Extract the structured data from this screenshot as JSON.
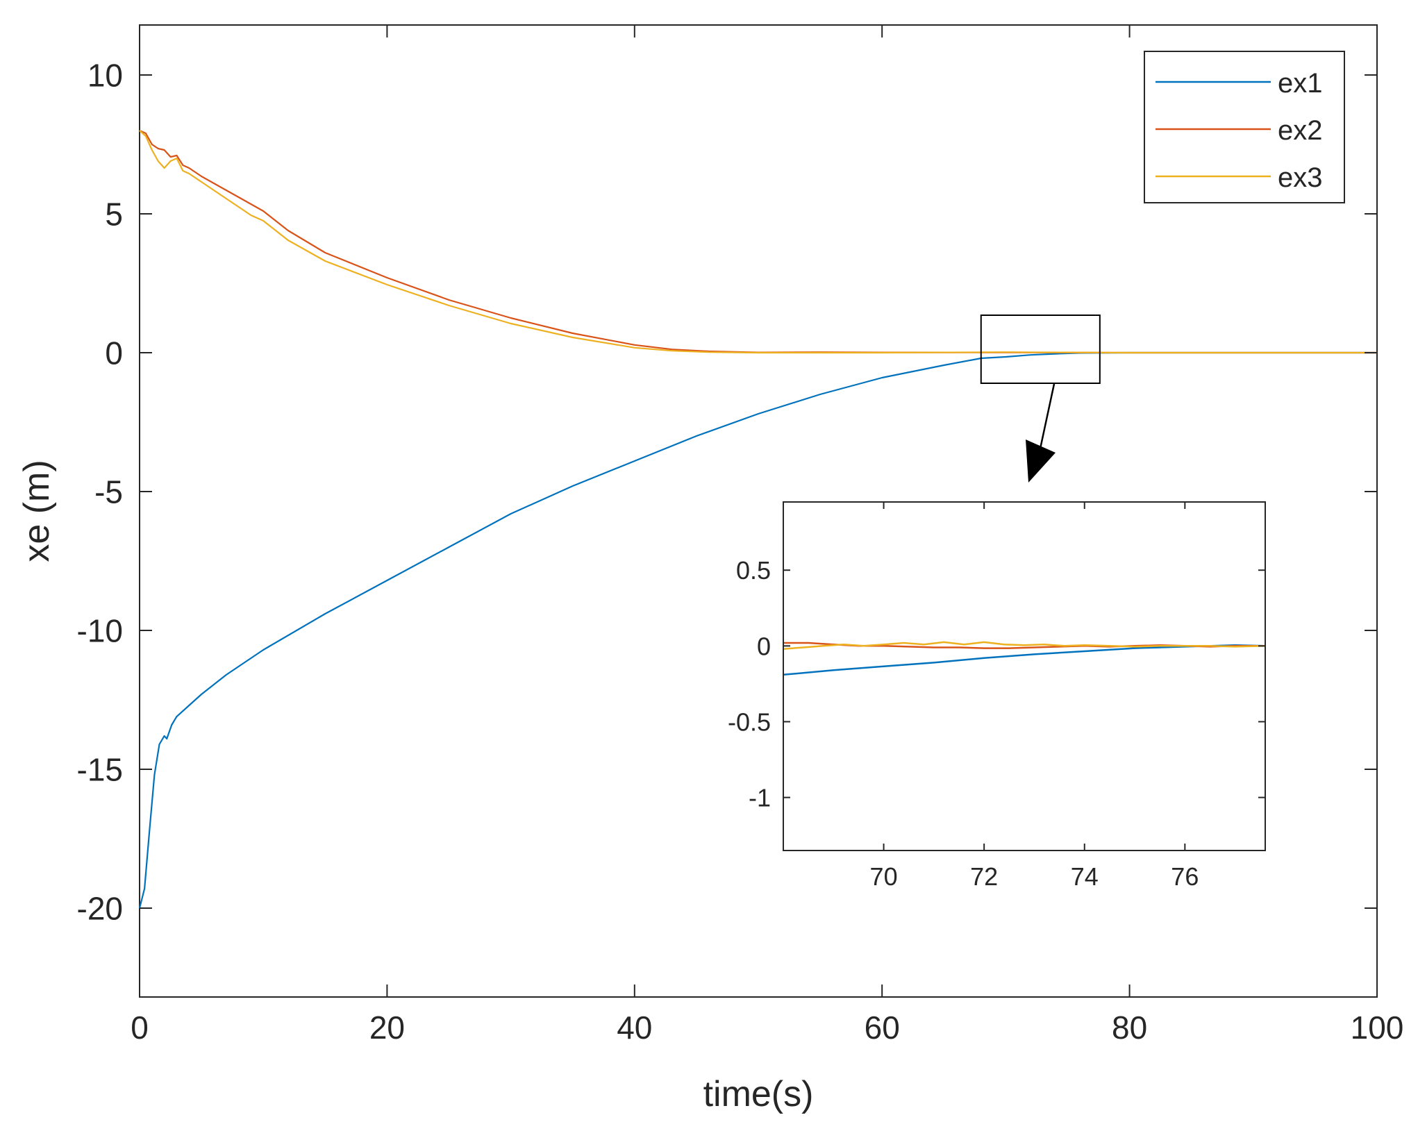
{
  "chart_data": [
    {
      "type": "line",
      "role": "main",
      "xlabel": "time(s)",
      "ylabel": "xe (m)",
      "xlim": [
        0,
        100
      ],
      "ylim": [
        -23.2,
        11.8
      ],
      "xticks": [
        0,
        20,
        40,
        60,
        80,
        100
      ],
      "yticks": [
        -20,
        -15,
        -10,
        -5,
        0,
        5,
        10
      ],
      "grid": false,
      "legend": {
        "placement": "top-right",
        "entries": [
          "ex1",
          "ex2",
          "ex3"
        ]
      },
      "series": [
        {
          "name": "ex1",
          "color": "#0072BD",
          "x": [
            0,
            0.4,
            0.8,
            1.2,
            1.6,
            2.0,
            2.2,
            2.6,
            3,
            4,
            5,
            7,
            10,
            15,
            20,
            25,
            30,
            35,
            40,
            45,
            50,
            55,
            60,
            65,
            68,
            70,
            72,
            74,
            76,
            80,
            90,
            100
          ],
          "y": [
            -20,
            -19.3,
            -17.2,
            -15.2,
            -14.1,
            -13.8,
            -13.9,
            -13.4,
            -13.1,
            -12.7,
            -12.3,
            -11.6,
            -10.7,
            -9.4,
            -8.2,
            -7.0,
            -5.8,
            -4.8,
            -3.9,
            -3.0,
            -2.2,
            -1.5,
            -0.9,
            -0.45,
            -0.2,
            -0.15,
            -0.08,
            -0.04,
            -0.01,
            0,
            0,
            0
          ]
        },
        {
          "name": "ex2",
          "color": "#D95319",
          "x": [
            0,
            0.5,
            1,
            1.5,
            2,
            2.5,
            3,
            3.5,
            4,
            5,
            6,
            7,
            8,
            9,
            10,
            12,
            15,
            20,
            25,
            30,
            35,
            40,
            43,
            46,
            50,
            55,
            60,
            70,
            80,
            90,
            100
          ],
          "y": [
            8,
            7.9,
            7.5,
            7.35,
            7.3,
            7.05,
            7.1,
            6.75,
            6.65,
            6.35,
            6.1,
            5.85,
            5.6,
            5.35,
            5.1,
            4.4,
            3.6,
            2.7,
            1.9,
            1.25,
            0.7,
            0.28,
            0.12,
            0.05,
            0.01,
            0.02,
            0.01,
            0.01,
            0,
            0,
            0
          ]
        },
        {
          "name": "ex3",
          "color": "#EDB120",
          "x": [
            0,
            0.5,
            1,
            1.5,
            2,
            2.5,
            3,
            3.5,
            4,
            5,
            6,
            7,
            8,
            9,
            10,
            12,
            15,
            20,
            25,
            30,
            35,
            40,
            43,
            46,
            50,
            55,
            60,
            70,
            80,
            90,
            100
          ],
          "y": [
            8,
            7.8,
            7.3,
            6.9,
            6.65,
            6.9,
            7.0,
            6.55,
            6.45,
            6.15,
            5.85,
            5.55,
            5.25,
            4.95,
            4.75,
            4.05,
            3.3,
            2.45,
            1.7,
            1.05,
            0.55,
            0.18,
            0.07,
            0.02,
            0,
            0,
            0,
            0.02,
            0,
            0,
            0
          ]
        }
      ]
    },
    {
      "type": "line",
      "role": "inset-zoom",
      "xlim": [
        68,
        77.6
      ],
      "ylim": [
        -1.35,
        0.95
      ],
      "xticks": [
        70,
        72,
        74,
        76
      ],
      "yticks": [
        -1,
        -0.5,
        0,
        0.5
      ],
      "grid": false,
      "series": [
        {
          "name": "ex1",
          "color": "#0072BD",
          "x": [
            68,
            69,
            70,
            71,
            72,
            73,
            74,
            75,
            76,
            77,
            77.6
          ],
          "y": [
            -0.19,
            -0.16,
            -0.135,
            -0.11,
            -0.08,
            -0.055,
            -0.035,
            -0.015,
            -0.005,
            0.005,
            0.0
          ]
        },
        {
          "name": "ex2",
          "color": "#D95319",
          "x": [
            68,
            68.5,
            69,
            69.5,
            70,
            70.5,
            71,
            71.5,
            72,
            72.5,
            73,
            73.5,
            74,
            74.5,
            75,
            75.5,
            76,
            76.5,
            77,
            77.6
          ],
          "y": [
            0.02,
            0.02,
            0.01,
            0.0,
            0.0,
            -0.005,
            -0.01,
            -0.01,
            -0.015,
            -0.015,
            -0.01,
            -0.005,
            0.0,
            -0.005,
            0.0,
            0.005,
            0.0,
            -0.005,
            0.0,
            0.0
          ]
        },
        {
          "name": "ex3",
          "color": "#EDB120",
          "x": [
            68,
            68.4,
            68.8,
            69.2,
            69.6,
            70,
            70.4,
            70.8,
            71.2,
            71.6,
            72,
            72.4,
            72.8,
            73.2,
            73.6,
            74,
            74.5,
            75,
            75.5,
            76,
            76.5,
            77,
            77.6
          ],
          "y": [
            -0.02,
            -0.01,
            0.0,
            0.01,
            0.0,
            0.01,
            0.02,
            0.01,
            0.025,
            0.01,
            0.025,
            0.01,
            0.005,
            0.01,
            0.0,
            0.005,
            0.0,
            -0.005,
            0.0,
            0.0,
            0.0,
            -0.005,
            0.0
          ]
        }
      ]
    }
  ]
}
